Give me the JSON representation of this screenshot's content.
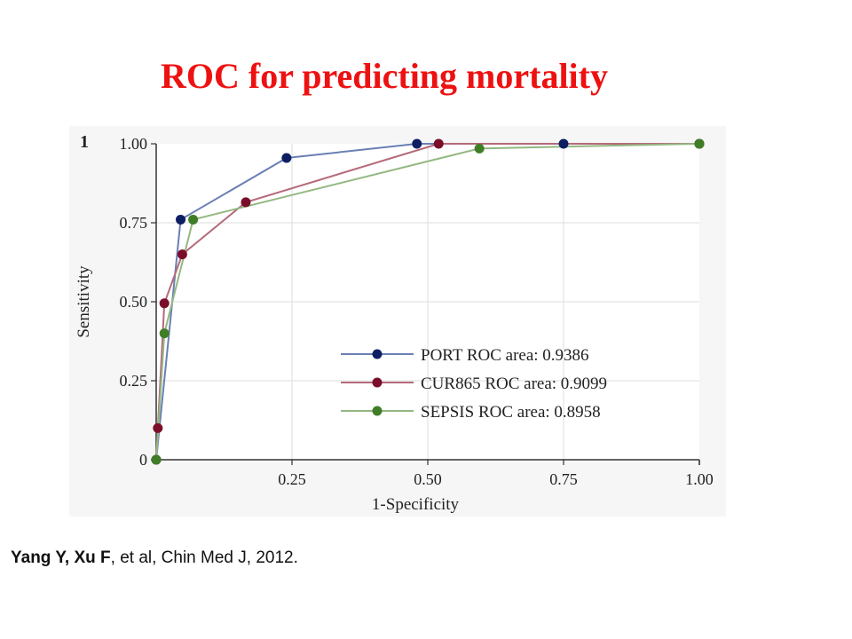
{
  "slide": {
    "title": "ROC for predicting mortality",
    "panel_label": "1",
    "citation_bold": "Yang Y, Xu F",
    "citation_rest": ", et al, Chin Med J, 2012."
  },
  "chart_data": {
    "type": "line",
    "xlabel": "1-Specificity",
    "ylabel": "Sensitivity",
    "xlim": [
      0,
      1
    ],
    "ylim": [
      0,
      1
    ],
    "xticks": [
      0.25,
      0.5,
      0.75,
      1.0
    ],
    "xtick_labels": [
      "0.25",
      "0.50",
      "0.75",
      "1.00"
    ],
    "yticks": [
      0,
      0.25,
      0.5,
      0.75,
      1.0
    ],
    "ytick_labels": [
      "0",
      "0.25",
      "0.50",
      "0.75",
      "1.00"
    ],
    "grid": true,
    "legend_position": "bottom-right",
    "series": [
      {
        "name": "PORT ROC area: 0.9386",
        "line_color": "#6a7fb3",
        "marker_color": "#0d1f63",
        "x": [
          0,
          0.045,
          0.24,
          0.48,
          0.75,
          1.0
        ],
        "y": [
          0,
          0.76,
          0.955,
          1.0,
          1.0,
          1.0
        ]
      },
      {
        "name": "CUR865 ROC area: 0.9099",
        "line_color": "#b56a7a",
        "marker_color": "#7a0e2a",
        "x": [
          0,
          0.003,
          0.015,
          0.048,
          0.165,
          0.52,
          1.0
        ],
        "y": [
          0,
          0.1,
          0.495,
          0.65,
          0.815,
          1.0,
          1.0
        ]
      },
      {
        "name": "SEPSIS ROC area: 0.8958",
        "line_color": "#93b882",
        "marker_color": "#3f7e27",
        "x": [
          0,
          0.015,
          0.068,
          0.595,
          1.0
        ],
        "y": [
          0,
          0.4,
          0.76,
          0.985,
          1.0
        ]
      }
    ]
  }
}
